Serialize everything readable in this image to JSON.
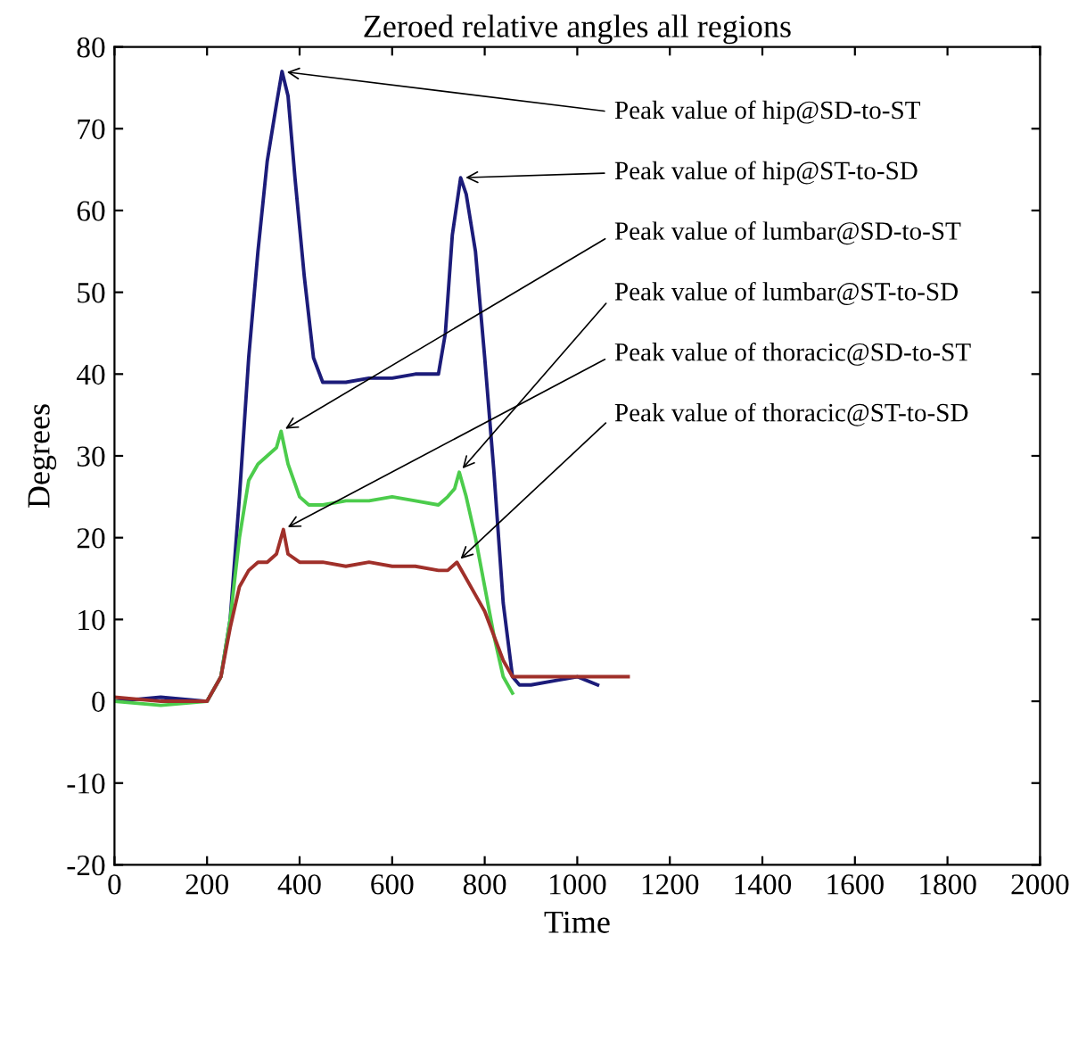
{
  "chart_data": {
    "type": "line",
    "title": "Zeroed relative angles all regions",
    "xlabel": "Time",
    "ylabel": "Degrees",
    "xlim": [
      0,
      2000
    ],
    "xticks": [
      0,
      200,
      400,
      600,
      800,
      1000,
      1200,
      1400,
      1600,
      1800,
      2000
    ],
    "ylim": [
      -20,
      80
    ],
    "yticks": [
      -20,
      -10,
      0,
      10,
      20,
      30,
      40,
      50,
      60,
      70,
      80
    ],
    "grid": false,
    "marker": "none",
    "line_style": "solid",
    "series": [
      {
        "color": "#1c1c7a",
        "x": [
          0,
          100,
          200,
          230,
          250,
          270,
          290,
          310,
          330,
          350,
          362,
          375,
          390,
          410,
          430,
          450,
          500,
          550,
          600,
          650,
          700,
          715,
          730,
          748,
          760,
          780,
          800,
          820,
          840,
          860,
          875,
          900,
          950,
          1000,
          1044
        ],
        "values": [
          0,
          0.5,
          0,
          3,
          10,
          25,
          42,
          55,
          66,
          73,
          77,
          74,
          64,
          52,
          42,
          39,
          39,
          39.5,
          39.5,
          40,
          40,
          45,
          57,
          64,
          62,
          55,
          42,
          28,
          12,
          3,
          2,
          2,
          2.5,
          3,
          2
        ]
      },
      {
        "color": "#4ccc4c",
        "x": [
          0,
          100,
          200,
          230,
          250,
          270,
          290,
          310,
          330,
          350,
          360,
          375,
          400,
          420,
          450,
          500,
          550,
          600,
          650,
          700,
          720,
          735,
          745,
          760,
          780,
          800,
          820,
          840,
          860
        ],
        "values": [
          0,
          -0.5,
          0,
          3,
          10,
          20,
          27,
          29,
          30,
          31,
          33,
          29,
          25,
          24,
          24,
          24.5,
          24.5,
          25,
          24.5,
          24,
          25,
          26,
          28,
          25,
          20,
          14,
          8,
          3,
          1
        ]
      },
      {
        "color": "#a0302a",
        "x": [
          0,
          100,
          200,
          230,
          250,
          270,
          290,
          310,
          330,
          350,
          365,
          375,
          400,
          450,
          500,
          550,
          600,
          650,
          700,
          720,
          740,
          760,
          780,
          800,
          820,
          840,
          860,
          880,
          900,
          950,
          1000,
          1050,
          1110
        ],
        "values": [
          0.5,
          0,
          0,
          3,
          9,
          14,
          16,
          17,
          17,
          18,
          21,
          18,
          17,
          17,
          16.5,
          17,
          16.5,
          16.5,
          16,
          16,
          17,
          15,
          13,
          11,
          8,
          5,
          3,
          3,
          3,
          3,
          3,
          3,
          3
        ]
      }
    ],
    "annotations": [
      {
        "text": "Peak value of hip@SD-to-ST",
        "x": 362,
        "y": 77
      },
      {
        "text": "Peak value of hip@ST-to-SD",
        "x": 748,
        "y": 64
      },
      {
        "text": "Peak value of lumbar@SD-to-ST",
        "x": 360,
        "y": 33
      },
      {
        "text": "Peak value of lumbar@ST-to-SD",
        "x": 745,
        "y": 28
      },
      {
        "text": "Peak value of thoracic@SD-to-ST",
        "x": 365,
        "y": 21
      },
      {
        "text": "Peak value of thoracic@ST-to-SD",
        "x": 740,
        "y": 17
      }
    ]
  }
}
